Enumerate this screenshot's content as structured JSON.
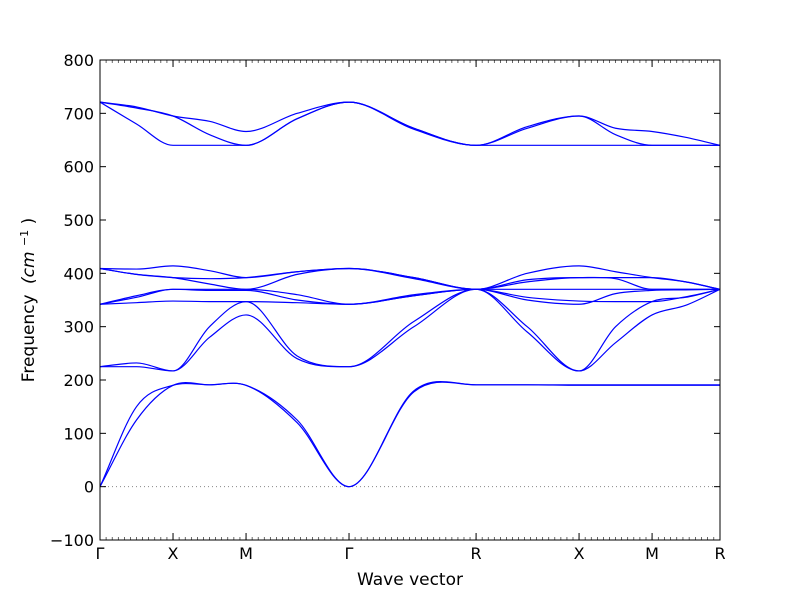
{
  "chart_data": {
    "type": "line",
    "title": "",
    "xlabel": "Wave vector",
    "ylabel_text": "Frequency",
    "ylabel_unit": "(cm",
    "ylabel_unit_sup": "−1",
    "ylabel_unit_close": ")",
    "ylim": [
      -100,
      800
    ],
    "yticks": [
      -100,
      0,
      100,
      200,
      300,
      400,
      500,
      600,
      700,
      800
    ],
    "xlim": [
      0,
      8.49
    ],
    "xticks": [
      {
        "label": "Γ",
        "x": 0
      },
      {
        "label": "X",
        "x": 1.0
      },
      {
        "label": "M",
        "x": 2.0
      },
      {
        "label": "Γ",
        "x": 3.41
      },
      {
        "label": "R",
        "x": 5.15
      },
      {
        "label": "X",
        "x": 6.56
      },
      {
        "label": "M",
        "x": 7.56
      },
      {
        "label": "R",
        "x": 8.49
      }
    ],
    "zero_line": true,
    "line_color": "#0000ff",
    "zero_line_color": "#888888",
    "series": [
      {
        "x": [
          0,
          0.5,
          1.0,
          1.5,
          2.0,
          2.7,
          3.41,
          4.3,
          5.15,
          5.85,
          6.56,
          7.06,
          7.56,
          8.02,
          8.49
        ],
        "values": [
          0,
          125,
          190,
          191,
          190,
          120,
          0,
          178,
          191,
          191,
          191,
          191,
          191,
          191,
          191
        ]
      },
      {
        "x": [
          0,
          0.5,
          1.0,
          1.5,
          2.0,
          2.7,
          3.41,
          4.3,
          5.15,
          5.85,
          6.56,
          7.06,
          7.56,
          8.02,
          8.49
        ],
        "values": [
          0,
          150,
          190,
          191,
          190,
          125,
          0,
          180,
          191,
          191,
          190,
          190,
          190,
          190,
          190
        ]
      },
      {
        "x": [
          0,
          0.5,
          1.0,
          1.5,
          2.0,
          2.7,
          3.41,
          4.3,
          5.15,
          5.85,
          6.56,
          7.06,
          7.56,
          8.02,
          8.49
        ],
        "values": [
          225,
          225,
          217,
          280,
          322,
          240,
          225,
          300,
          370,
          290,
          217,
          270,
          322,
          340,
          370
        ]
      },
      {
        "x": [
          0,
          0.5,
          1.0,
          1.5,
          2.0,
          2.7,
          3.41,
          4.3,
          5.15,
          5.85,
          6.56,
          7.06,
          7.56,
          8.02,
          8.49
        ],
        "values": [
          225,
          232,
          217,
          300,
          347,
          245,
          225,
          310,
          370,
          300,
          217,
          300,
          347,
          355,
          370
        ]
      },
      {
        "x": [
          0,
          0.5,
          1.0,
          1.5,
          2.0,
          2.7,
          3.41,
          4.3,
          5.15,
          5.85,
          6.56,
          7.06,
          7.56,
          8.02,
          8.49
        ],
        "values": [
          342,
          345,
          348,
          347,
          347,
          345,
          342,
          358,
          370,
          355,
          348,
          347,
          347,
          356,
          370
        ]
      },
      {
        "x": [
          0,
          0.5,
          1.0,
          1.5,
          2.0,
          2.7,
          3.41,
          4.3,
          5.15,
          5.85,
          6.56,
          7.06,
          7.56,
          8.02,
          8.49
        ],
        "values": [
          342,
          358,
          370,
          368,
          368,
          350,
          342,
          358,
          370,
          350,
          342,
          362,
          368,
          369,
          370
        ]
      },
      {
        "x": [
          0,
          0.5,
          1.0,
          1.5,
          2.0,
          2.7,
          3.41,
          4.3,
          5.15,
          5.85,
          6.56,
          7.06,
          7.56,
          8.02,
          8.49
        ],
        "values": [
          342,
          355,
          370,
          370,
          370,
          360,
          342,
          360,
          370,
          370,
          370,
          370,
          370,
          370,
          370
        ]
      },
      {
        "x": [
          0,
          0.5,
          1.0,
          1.5,
          2.0,
          2.7,
          3.41,
          4.3,
          5.15,
          5.85,
          6.56,
          7.06,
          7.56,
          8.02,
          8.49
        ],
        "values": [
          409,
          398,
          392,
          380,
          370,
          398,
          409,
          390,
          370,
          384,
          392,
          390,
          370,
          370,
          370
        ]
      },
      {
        "x": [
          0,
          0.5,
          1.0,
          1.5,
          2.0,
          2.7,
          3.41,
          4.3,
          5.15,
          5.85,
          6.56,
          7.06,
          7.56,
          8.02,
          8.49
        ],
        "values": [
          409,
          408,
          414,
          405,
          392,
          403,
          409,
          392,
          370,
          400,
          414,
          403,
          392,
          384,
          370
        ]
      },
      {
        "x": [
          0,
          0.5,
          1.0,
          1.5,
          2.0,
          2.7,
          3.41,
          4.3,
          5.15,
          5.85,
          6.56,
          7.06,
          7.56,
          8.02,
          8.49
        ],
        "values": [
          409,
          398,
          392,
          390,
          392,
          403,
          409,
          392,
          370,
          388,
          392,
          392,
          392,
          384,
          370
        ]
      },
      {
        "x": [
          0,
          0.5,
          1.0,
          1.5,
          2.0,
          2.7,
          3.41,
          4.3,
          5.15,
          5.85,
          6.56,
          7.06,
          7.56,
          8.02,
          8.49
        ],
        "values": [
          721,
          680,
          640,
          640,
          640,
          690,
          721,
          670,
          640,
          640,
          640,
          640,
          640,
          640,
          640
        ]
      },
      {
        "x": [
          0,
          0.5,
          1.0,
          1.5,
          2.0,
          2.7,
          3.41,
          4.3,
          5.15,
          5.85,
          6.56,
          7.06,
          7.56,
          8.02,
          8.49
        ],
        "values": [
          721,
          710,
          695,
          660,
          640,
          690,
          721,
          672,
          640,
          672,
          695,
          660,
          640,
          640,
          640
        ]
      },
      {
        "x": [
          0,
          0.5,
          1.0,
          1.5,
          2.0,
          2.7,
          3.41,
          4.3,
          5.15,
          5.85,
          6.56,
          7.06,
          7.56,
          8.02,
          8.49
        ],
        "values": [
          721,
          712,
          695,
          685,
          666,
          700,
          721,
          672,
          640,
          675,
          695,
          672,
          666,
          655,
          640
        ]
      }
    ]
  }
}
